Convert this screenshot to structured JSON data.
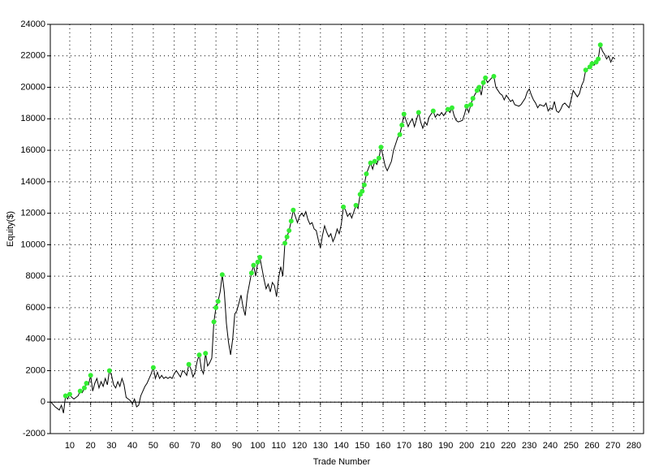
{
  "chart_data": {
    "type": "line",
    "xlabel": "Trade Number",
    "ylabel": "Equity($)",
    "x": [
      1,
      3,
      5,
      6,
      7,
      8,
      9,
      10,
      11,
      12,
      14,
      15,
      16,
      17,
      18,
      19,
      20,
      21,
      22,
      23,
      24,
      25,
      26,
      27,
      28,
      29,
      30,
      31,
      32,
      33,
      34,
      35,
      36,
      37,
      38,
      39,
      40,
      41,
      42,
      43,
      44,
      45,
      46,
      47,
      48,
      49,
      50,
      51,
      52,
      53,
      54,
      55,
      56,
      57,
      58,
      59,
      60,
      61,
      62,
      63,
      64,
      65,
      66,
      67,
      68,
      69,
      70,
      71,
      72,
      73,
      74,
      75,
      76,
      77,
      78,
      79,
      80,
      81,
      82,
      83,
      84,
      85,
      86,
      87,
      88,
      89,
      90,
      91,
      92,
      93,
      94,
      95,
      96,
      97,
      98,
      99,
      100,
      101,
      102,
      103,
      104,
      105,
      106,
      107,
      108,
      109,
      110,
      111,
      112,
      113,
      114,
      115,
      116,
      117,
      119,
      120,
      121,
      122,
      123,
      124,
      125,
      126,
      127,
      128,
      129,
      130,
      131,
      132,
      133,
      134,
      135,
      136,
      137,
      138,
      139,
      140,
      141,
      142,
      143,
      144,
      145,
      147,
      148,
      149,
      150,
      151,
      152,
      154,
      155,
      156,
      157,
      158,
      159,
      160,
      161,
      162,
      163,
      164,
      165,
      167,
      168,
      169,
      170,
      171,
      172,
      173,
      174,
      175,
      177,
      178,
      179,
      180,
      181,
      182,
      184,
      185,
      186,
      187,
      188,
      189,
      191,
      192,
      193,
      194,
      195,
      196,
      198,
      199,
      200,
      201,
      202,
      203,
      205,
      206,
      207,
      208,
      209,
      210,
      212,
      213,
      214,
      215,
      216,
      217,
      218,
      219,
      220,
      221,
      222,
      223,
      225,
      226,
      227,
      228,
      229,
      230,
      231,
      232,
      233,
      234,
      235,
      237,
      238,
      239,
      240,
      241,
      242,
      243,
      244,
      245,
      246,
      247,
      249,
      250,
      251,
      252,
      253,
      254,
      255,
      256,
      257,
      259,
      260,
      261,
      262,
      263,
      264,
      265,
      266,
      267,
      268,
      269,
      270,
      271
    ],
    "values": [
      0,
      -300,
      -500,
      -200,
      -700,
      400,
      200,
      500,
      300,
      200,
      400,
      700,
      600,
      900,
      1200,
      1100,
      1700,
      700,
      1200,
      1500,
      900,
      1300,
      1000,
      1500,
      1100,
      2000,
      1700,
      1100,
      900,
      1300,
      1000,
      1500,
      1100,
      300,
      200,
      100,
      -100,
      200,
      -300,
      -200,
      400,
      700,
      1000,
      1200,
      1500,
      1800,
      2200,
      1500,
      1900,
      1500,
      1700,
      1500,
      1600,
      1500,
      1600,
      1500,
      1800,
      2000,
      1800,
      1600,
      2000,
      1900,
      1700,
      2400,
      2100,
      1600,
      1900,
      2600,
      3000,
      2100,
      1800,
      3100,
      2300,
      2500,
      2800,
      5100,
      6000,
      6400,
      7000,
      8100,
      7000,
      5000,
      3800,
      3000,
      4000,
      5600,
      5800,
      6300,
      6800,
      6000,
      5500,
      6800,
      7500,
      8200,
      8700,
      8000,
      8900,
      9200,
      8500,
      7800,
      7200,
      7500,
      7000,
      7600,
      7400,
      6700,
      7900,
      8600,
      8000,
      10100,
      10500,
      10900,
      11500,
      12200,
      11400,
      11800,
      12000,
      11800,
      12100,
      11600,
      11300,
      11400,
      11000,
      10900,
      10300,
      9800,
      10600,
      11200,
      10800,
      10500,
      10700,
      10200,
      10500,
      11000,
      10700,
      11300,
      12400,
      12200,
      11800,
      12000,
      11700,
      12500,
      12300,
      13200,
      13400,
      13800,
      14500,
      15200,
      14800,
      15300,
      15100,
      15500,
      16200,
      15600,
      15000,
      14700,
      15000,
      15300,
      16000,
      16800,
      17000,
      17600,
      18300,
      17900,
      17500,
      17800,
      18000,
      17500,
      18400,
      17800,
      17400,
      17800,
      17600,
      18100,
      18500,
      18100,
      18300,
      18200,
      18400,
      18200,
      18600,
      18400,
      18700,
      18200,
      17900,
      17800,
      17900,
      18300,
      18800,
      18400,
      18900,
      19300,
      19800,
      20000,
      19500,
      20300,
      20600,
      20300,
      20600,
      20700,
      20000,
      19800,
      19600,
      19500,
      19200,
      19500,
      19300,
      19100,
      19200,
      18900,
      18800,
      18900,
      19100,
      19300,
      19700,
      19900,
      19500,
      19200,
      19000,
      18700,
      18900,
      18800,
      19000,
      18500,
      18700,
      18600,
      19100,
      18500,
      18400,
      18600,
      18900,
      19000,
      18700,
      19200,
      19800,
      19600,
      19400,
      19600,
      20100,
      20400,
      21100,
      21300,
      21500,
      21400,
      21600,
      21800,
      22700,
      22300,
      22100,
      21800,
      22000,
      21600,
      21900,
      21800
    ],
    "color": "#000000",
    "markers": {
      "color": "#33ee33",
      "x": [
        8,
        10,
        15,
        17,
        18,
        20,
        29,
        50,
        67,
        72,
        75,
        79,
        80,
        81,
        83,
        97,
        98,
        100,
        101,
        113,
        114,
        115,
        116,
        117,
        141,
        147,
        149,
        150,
        151,
        152,
        154,
        156,
        158,
        159,
        168,
        169,
        170,
        177,
        184,
        191,
        193,
        200,
        202,
        203,
        205,
        206,
        208,
        209,
        213,
        257,
        259,
        260,
        262,
        263,
        264
      ],
      "values": [
        400,
        500,
        700,
        900,
        1200,
        1700,
        2000,
        2200,
        2400,
        3000,
        3100,
        5100,
        6000,
        6400,
        8100,
        8200,
        8700,
        8900,
        9200,
        10100,
        10500,
        10900,
        11500,
        12200,
        12400,
        12500,
        13200,
        13400,
        13800,
        14500,
        15200,
        15300,
        15500,
        16200,
        17000,
        17600,
        18300,
        18400,
        18500,
        18600,
        18700,
        18800,
        18900,
        19300,
        19800,
        20000,
        20300,
        20600,
        20700,
        21100,
        21300,
        21500,
        21600,
        21800,
        22700
      ]
    },
    "xlim": [
      0.7,
      284.7
    ],
    "xticks": [
      10,
      20,
      30,
      40,
      50,
      60,
      70,
      80,
      90,
      100,
      110,
      120,
      130,
      140,
      150,
      160,
      170,
      180,
      190,
      200,
      210,
      220,
      230,
      240,
      250,
      260,
      270,
      280
    ],
    "ylim": [
      -2000,
      24000
    ],
    "yticks": [
      -2000,
      0,
      2000,
      4000,
      6000,
      8000,
      10000,
      12000,
      14000,
      16000,
      18000,
      20000,
      22000,
      24000
    ],
    "grid": true,
    "zero_line": true
  }
}
